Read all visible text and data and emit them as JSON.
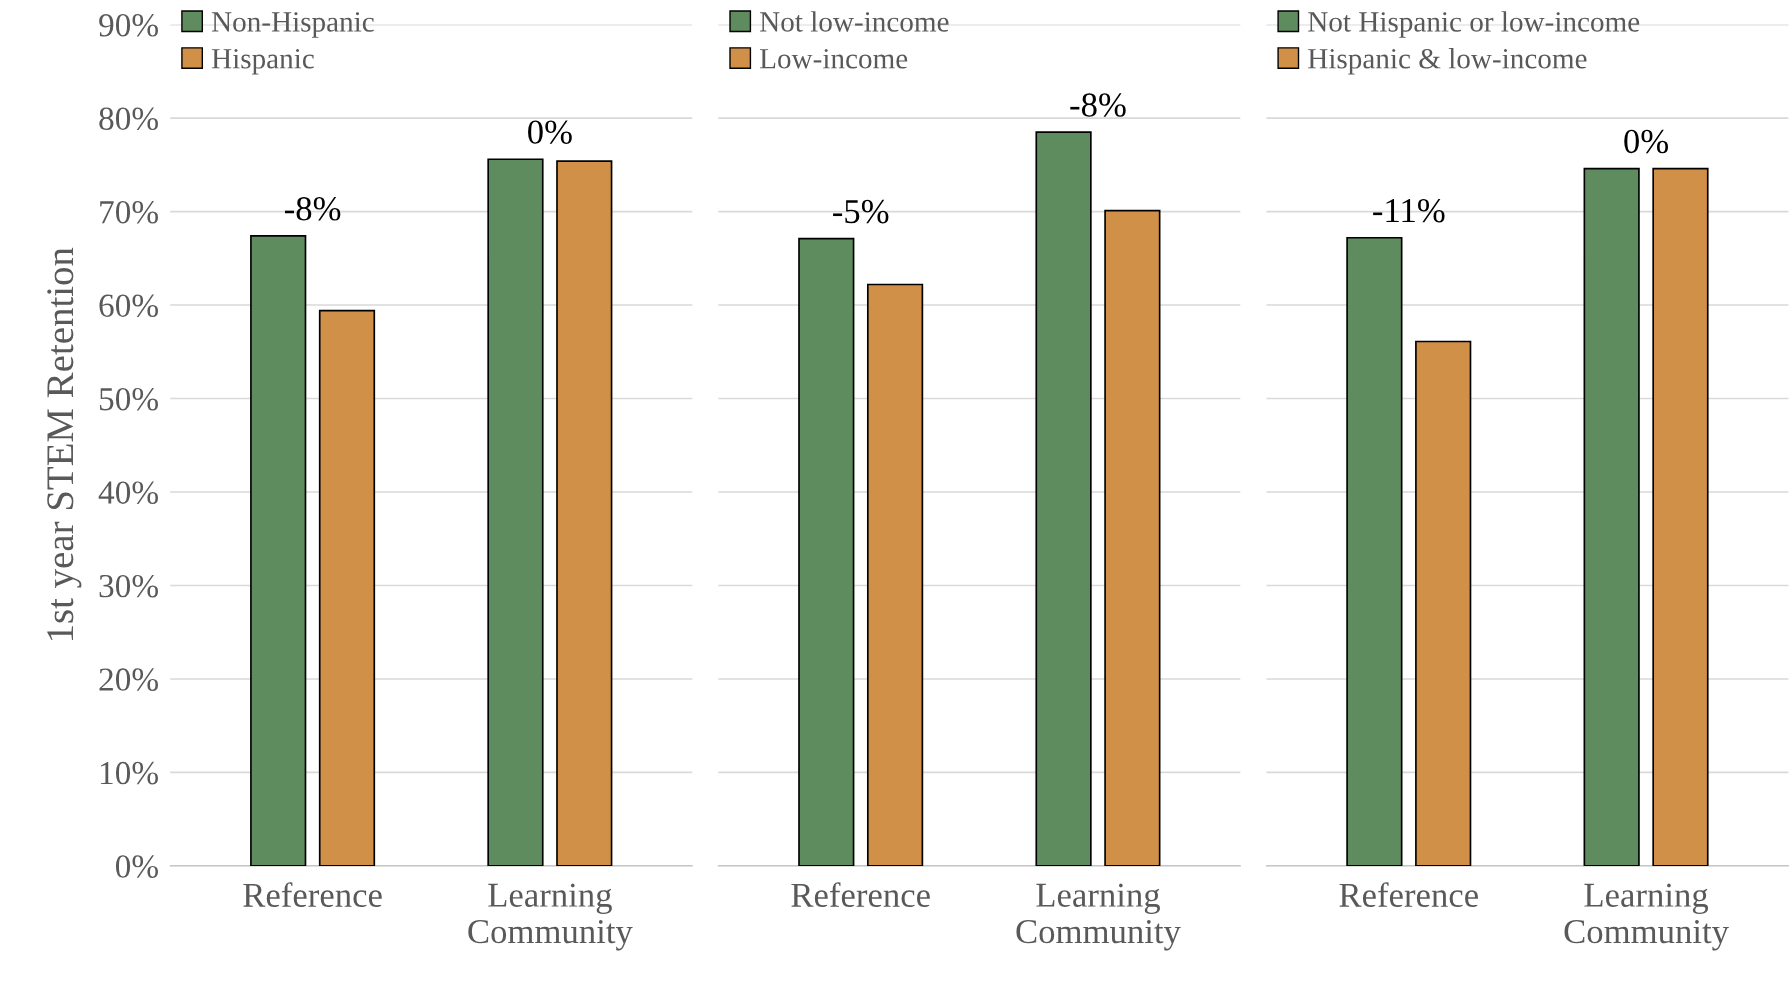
{
  "chart_data": [
    {
      "type": "bar",
      "ylabel": "1st year STEM Retention",
      "categories": [
        "Reference",
        "Learning Community"
      ],
      "ylim": [
        0,
        90
      ],
      "yticks": [
        {
          "value": 0,
          "label": "0%"
        },
        {
          "value": 10,
          "label": "10%"
        },
        {
          "value": 20,
          "label": "20%"
        },
        {
          "value": 30,
          "label": "30%"
        },
        {
          "value": 40,
          "label": "40%"
        },
        {
          "value": 50,
          "label": "50%"
        },
        {
          "value": 60,
          "label": "60%"
        },
        {
          "value": 70,
          "label": "70%"
        },
        {
          "value": 80,
          "label": "80%"
        },
        {
          "value": 90,
          "label": "90%"
        }
      ],
      "grid": "y",
      "legend": "top left",
      "series": [
        {
          "name": "Non-Hispanic",
          "color": "#5f8c5e",
          "values": [
            67.4,
            75.6
          ]
        },
        {
          "name": "Hispanic",
          "color": "#d09048",
          "values": [
            59.4,
            75.4
          ]
        }
      ],
      "annotations": [
        "-8%",
        "0%"
      ]
    },
    {
      "type": "bar",
      "categories": [
        "Reference",
        "Learning Community"
      ],
      "ylim": [
        0,
        90
      ],
      "yticks": [
        0,
        10,
        20,
        30,
        40,
        50,
        60,
        70,
        80,
        90
      ],
      "tick_labels": "x",
      "grid": "y",
      "legend": "top left",
      "series": [
        {
          "name": "Not low-income",
          "color": "#5f8c5e",
          "values": [
            67.1,
            78.5
          ]
        },
        {
          "name": "Low-income",
          "color": "#d09048",
          "values": [
            62.2,
            70.1
          ]
        }
      ],
      "annotations": [
        "-5%",
        "-8%"
      ]
    },
    {
      "type": "bar",
      "categories": [
        "Reference",
        "Learning Community"
      ],
      "ylim": [
        0,
        90
      ],
      "yticks": [
        0,
        10,
        20,
        30,
        40,
        50,
        60,
        70,
        80,
        90
      ],
      "tick_labels": "x",
      "grid": "y",
      "legend": "top left",
      "series": [
        {
          "name": "Not Hispanic or low-income",
          "color": "#5f8c5e",
          "values": [
            67.2,
            74.6
          ]
        },
        {
          "name": "Hispanic & low-income",
          "color": "#d09048",
          "values": [
            56.1,
            74.6
          ]
        }
      ],
      "annotations": [
        "-11%",
        "0%"
      ]
    }
  ]
}
